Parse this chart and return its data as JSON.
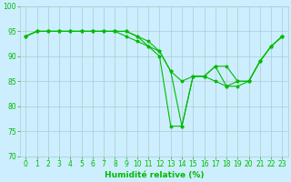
{
  "xlabel": "Humidité relative (%)",
  "xlim": [
    -0.5,
    23.5
  ],
  "ylim": [
    70,
    100
  ],
  "yticks": [
    70,
    75,
    80,
    85,
    90,
    95,
    100
  ],
  "xticks": [
    0,
    1,
    2,
    3,
    4,
    5,
    6,
    7,
    8,
    9,
    10,
    11,
    12,
    13,
    14,
    15,
    16,
    17,
    18,
    19,
    20,
    21,
    22,
    23
  ],
  "background_color": "#cceeff",
  "grid_color": "#aacccc",
  "line_color": "#00bb00",
  "series": [
    [
      94,
      95,
      95,
      95,
      95,
      95,
      95,
      95,
      95,
      95,
      94,
      92,
      91,
      87,
      85,
      86,
      86,
      88,
      88,
      85,
      85,
      89,
      92,
      94
    ],
    [
      94,
      95,
      95,
      95,
      95,
      95,
      95,
      95,
      95,
      95,
      94,
      93,
      91,
      87,
      76,
      86,
      86,
      88,
      84,
      85,
      85,
      89,
      92,
      94
    ],
    [
      94,
      95,
      95,
      95,
      95,
      95,
      95,
      95,
      95,
      94,
      93,
      92,
      90,
      76,
      76,
      86,
      86,
      85,
      84,
      84,
      85,
      89,
      92,
      94
    ]
  ],
  "xlabel_fontsize": 6.5,
  "tick_fontsize": 5.5
}
